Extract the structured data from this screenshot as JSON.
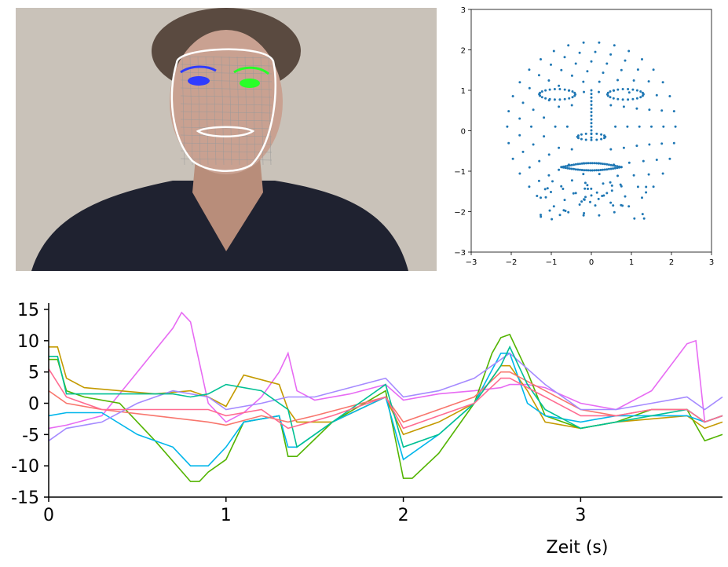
{
  "colors": {
    "scatter_points": "#1f77b4",
    "series_palette": [
      "#f8766d",
      "#c49a00",
      "#53b400",
      "#00c094",
      "#00b6eb",
      "#a58aff",
      "#fb61d7",
      "#e76bf3",
      "#8fa800",
      "#ff6c91"
    ],
    "photo_background": "#c9c2b9",
    "shirt": "#1f2230",
    "face_outline": "#ffffff",
    "left_eye": "#2f3cff",
    "right_eye": "#28ff28"
  },
  "chart_data": [
    {
      "id": "face-landmarks-scatter",
      "type": "scatter",
      "xlim": [
        -3,
        3
      ],
      "ylim": [
        -3,
        3
      ],
      "xticks": [
        "−3",
        "−2",
        "−1",
        "0",
        "1",
        "2",
        "3"
      ],
      "yticks": [
        "3",
        "2",
        "1",
        "0",
        "−1",
        "−2",
        "−3"
      ],
      "grid": false,
      "description_points": "~460 face-mesh landmarks, normalized"
    },
    {
      "id": "feature-timeseries",
      "type": "line",
      "xlabel": "Zeit (s)",
      "xlim": [
        0,
        3.8
      ],
      "ylim": [
        -15,
        15
      ],
      "xticks": [
        "0",
        "1",
        "2",
        "3"
      ],
      "yticks": [
        "15",
        "10",
        "5",
        "0",
        "-5",
        "-10",
        "-15"
      ],
      "grid": false,
      "series": [
        {
          "color": "#e76bf3",
          "x": [
            0,
            0.1,
            0.3,
            0.5,
            0.7,
            0.75,
            0.8,
            0.9,
            1.0,
            1.1,
            1.2,
            1.3,
            1.35,
            1.4,
            1.5,
            1.7,
            1.9,
            2.0,
            2.2,
            2.4,
            2.55,
            2.6,
            2.7,
            2.8,
            3.0,
            3.2,
            3.4,
            3.6,
            3.65,
            3.7,
            3.8
          ],
          "y": [
            -4,
            -3.5,
            -2,
            5,
            12,
            14.5,
            13,
            0,
            -3,
            -1.5,
            1,
            5,
            8,
            2,
            0.5,
            1.5,
            3,
            0.5,
            1.5,
            2,
            2.5,
            3,
            3,
            2.5,
            0,
            -1,
            2,
            9.5,
            10,
            -3,
            -2
          ]
        },
        {
          "color": "#c49a00",
          "x": [
            0,
            0.05,
            0.1,
            0.2,
            0.4,
            0.6,
            0.8,
            0.9,
            1.0,
            1.1,
            1.3,
            1.35,
            1.4,
            1.6,
            1.9,
            2.0,
            2.2,
            2.4,
            2.55,
            2.6,
            2.7,
            2.8,
            3.0,
            3.2,
            3.4,
            3.6,
            3.7,
            3.8
          ],
          "y": [
            9,
            9,
            4,
            2.5,
            2,
            1.5,
            2,
            1,
            -0.5,
            4.5,
            3,
            -1,
            -3,
            -3,
            1,
            -5,
            -3,
            0,
            6,
            6,
            2,
            -3,
            -4,
            -3,
            -2.5,
            -2,
            -4,
            -3
          ]
        },
        {
          "color": "#53b400",
          "x": [
            0,
            0.05,
            0.1,
            0.2,
            0.4,
            0.6,
            0.8,
            0.85,
            0.9,
            1.0,
            1.1,
            1.3,
            1.35,
            1.4,
            1.6,
            1.9,
            2.0,
            2.05,
            2.2,
            2.4,
            2.5,
            2.55,
            2.6,
            2.7,
            2.8,
            3.0,
            3.2,
            3.4,
            3.6,
            3.7,
            3.8
          ],
          "y": [
            7,
            7,
            2,
            1,
            0,
            -6,
            -12.5,
            -12.5,
            -11,
            -9,
            -3,
            -2,
            -8.5,
            -8.5,
            -3,
            2,
            -12,
            -12,
            -8,
            0,
            8,
            10.5,
            11,
            5,
            -2,
            -4,
            -3,
            -1,
            -1,
            -6,
            -5
          ]
        },
        {
          "color": "#00b6eb",
          "x": [
            0,
            0.1,
            0.3,
            0.5,
            0.7,
            0.8,
            0.9,
            1.0,
            1.1,
            1.3,
            1.35,
            1.4,
            1.6,
            1.9,
            2.0,
            2.2,
            2.4,
            2.55,
            2.6,
            2.7,
            2.8,
            3.0,
            3.2,
            3.4,
            3.6,
            3.7,
            3.8
          ],
          "y": [
            -2,
            -1.5,
            -1.5,
            -5,
            -7,
            -10,
            -10,
            -7,
            -3,
            -2,
            -7,
            -7,
            -3,
            1,
            -9,
            -5,
            0,
            8,
            8,
            0,
            -2,
            -3,
            -2,
            -2,
            -2,
            -3,
            -2
          ]
        },
        {
          "color": "#f8766d",
          "x": [
            0,
            0.1,
            0.3,
            0.6,
            0.9,
            1.0,
            1.2,
            1.35,
            1.5,
            1.9,
            2.0,
            2.2,
            2.4,
            2.55,
            2.6,
            2.8,
            3.0,
            3.2,
            3.4,
            3.6,
            3.7,
            3.8
          ],
          "y": [
            2,
            0,
            -1,
            -2,
            -3,
            -3.5,
            -2,
            -3,
            -2,
            1,
            -3,
            -1,
            1,
            5,
            5,
            2,
            -1,
            -2,
            -1,
            -1,
            -3,
            -2
          ]
        },
        {
          "color": "#a58aff",
          "x": [
            0,
            0.1,
            0.3,
            0.5,
            0.7,
            0.9,
            1.0,
            1.2,
            1.35,
            1.5,
            1.9,
            2.0,
            2.2,
            2.4,
            2.55,
            2.6,
            2.8,
            3.0,
            3.2,
            3.4,
            3.6,
            3.7,
            3.8
          ],
          "y": [
            -6,
            -4,
            -3,
            0,
            2,
            1,
            -1,
            0,
            1,
            1,
            4,
            1,
            2,
            4,
            7,
            8,
            3,
            -1,
            -1,
            0,
            1,
            -1,
            1
          ]
        },
        {
          "color": "#00c094",
          "x": [
            0,
            0.05,
            0.1,
            0.3,
            0.5,
            0.7,
            0.8,
            0.9,
            1.0,
            1.2,
            1.35,
            1.4,
            1.6,
            1.9,
            2.0,
            2.2,
            2.4,
            2.55,
            2.6,
            2.7,
            2.8,
            3.0,
            3.2,
            3.4,
            3.6,
            3.7,
            3.8
          ],
          "y": [
            7.5,
            7.5,
            1.5,
            1.5,
            1.5,
            1.5,
            1,
            1.5,
            3,
            2,
            -1,
            -7,
            -3,
            3,
            -7,
            -5,
            0,
            6,
            9,
            3,
            -1,
            -4,
            -3,
            -2,
            -1,
            -3,
            -2
          ]
        },
        {
          "color": "#ff6c91",
          "x": [
            0,
            0.1,
            0.3,
            0.6,
            0.9,
            1.0,
            1.2,
            1.35,
            1.6,
            1.9,
            2.0,
            2.2,
            2.4,
            2.55,
            2.6,
            2.8,
            3.0,
            3.2,
            3.4,
            3.6,
            3.7,
            3.8
          ],
          "y": [
            5.5,
            1,
            -1,
            -1,
            -1,
            -2,
            -1,
            -4,
            -2,
            1,
            -4,
            -2,
            0,
            4,
            4,
            1,
            -2,
            -2,
            -1,
            -1,
            -3,
            -2
          ]
        }
      ]
    }
  ]
}
